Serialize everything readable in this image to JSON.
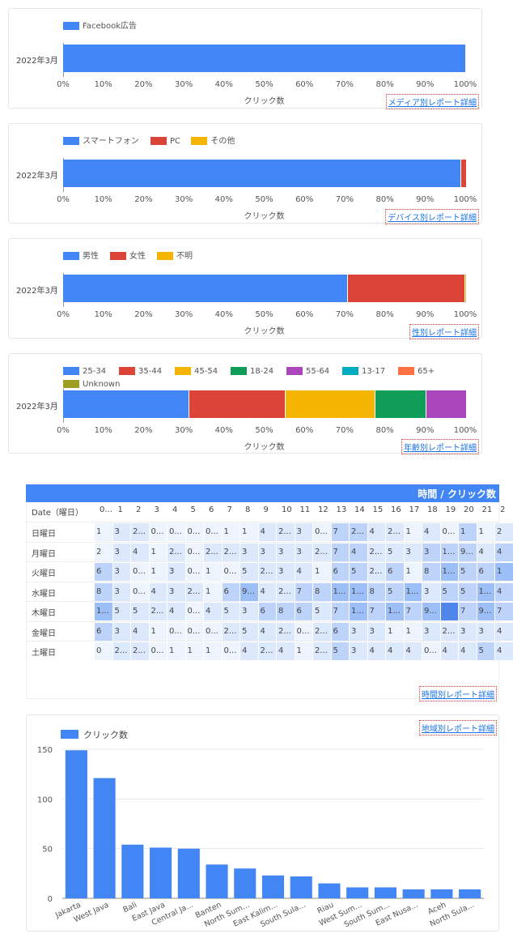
{
  "bar_cards": [
    {
      "row_label": "2022年3月",
      "axis_title": "クリック数",
      "link": "メディア別レポート詳細",
      "legend": [
        {
          "label": "Facebook広告",
          "color": "#4285f4"
        }
      ],
      "segments": [
        100
      ]
    },
    {
      "row_label": "2022年3月",
      "axis_title": "クリック数",
      "link": "デバイス別レポート詳細",
      "legend": [
        {
          "label": "スマートフォン",
          "color": "#4285f4"
        },
        {
          "label": "PC",
          "color": "#db4437"
        },
        {
          "label": "その他",
          "color": "#f4b400"
        }
      ],
      "segments": [
        98.8,
        1.2,
        0
      ]
    },
    {
      "row_label": "2022年3月",
      "axis_title": "クリック数",
      "link": "性別レポート詳細",
      "legend": [
        {
          "label": "男性",
          "color": "#4285f4"
        },
        {
          "label": "女性",
          "color": "#db4437"
        },
        {
          "label": "不明",
          "color": "#f4b400"
        }
      ],
      "segments": [
        70.6,
        29.1,
        0.3
      ]
    },
    {
      "row_label": "2022年3月",
      "axis_title": "クリック数",
      "link": "年齢別レポート詳細",
      "legend": [
        {
          "label": "25-34",
          "color": "#4285f4"
        },
        {
          "label": "35-44",
          "color": "#db4437"
        },
        {
          "label": "45-54",
          "color": "#f4b400"
        },
        {
          "label": "18-24",
          "color": "#0f9d58"
        },
        {
          "label": "55-64",
          "color": "#ab47bc"
        },
        {
          "label": "13-17",
          "color": "#00acc1"
        },
        {
          "label": "65+",
          "color": "#ff7043"
        },
        {
          "label": "Unknown",
          "color": "#9e9d24"
        }
      ],
      "segments": [
        31.2,
        24,
        22.2,
        12.8,
        9.8,
        0,
        0,
        0
      ]
    }
  ],
  "ticks": [
    "0%",
    "10%",
    "20%",
    "30%",
    "40%",
    "50%",
    "60%",
    "70%",
    "80%",
    "90%",
    "100%"
  ],
  "heatmap": {
    "title": "時間 / クリック数",
    "row_header": "Date（曜日）",
    "hours": [
      "0...",
      "1",
      "2",
      "3",
      "4",
      "5",
      "6",
      "7",
      "8",
      "9",
      "10",
      "11",
      "12",
      "13",
      "14",
      "15",
      "16",
      "17",
      "18",
      "19",
      "20",
      "21",
      "2"
    ],
    "link": "時間別レポート詳細",
    "rows": [
      {
        "label": "日曜日",
        "cells": [
          "1",
          "3",
          "2...",
          "0...",
          "0...",
          "0...",
          "0...",
          "1",
          "1",
          "4",
          "2...",
          "3",
          "0...",
          "7",
          "2...",
          "4",
          "2...",
          "1",
          "4",
          "0...",
          "1",
          "1",
          "2"
        ],
        "shade": [
          1,
          2,
          2,
          1,
          1,
          1,
          1,
          1,
          1,
          2,
          2,
          2,
          1,
          3,
          3,
          2,
          2,
          1,
          2,
          1,
          3,
          1,
          2
        ]
      },
      {
        "label": "月曜日",
        "cells": [
          "2",
          "3",
          "4",
          "1",
          "2...",
          "0...",
          "2...",
          "2...",
          "3",
          "3",
          "3",
          "3",
          "2...",
          "7",
          "4",
          "2...",
          "5",
          "3",
          "3",
          "1...",
          "9...",
          "4",
          "4"
        ],
        "shade": [
          1,
          2,
          2,
          1,
          2,
          1,
          2,
          2,
          2,
          2,
          2,
          2,
          2,
          3,
          3,
          2,
          2,
          2,
          3,
          3,
          3,
          2,
          3
        ]
      },
      {
        "label": "火曜日",
        "cells": [
          "6",
          "3",
          "0...",
          "1",
          "3",
          "0...",
          "1",
          "0...",
          "5",
          "2...",
          "3",
          "4",
          "1",
          "6",
          "5",
          "2...",
          "6",
          "1",
          "8",
          "1...",
          "5",
          "6",
          "1"
        ],
        "shade": [
          3,
          2,
          1,
          1,
          2,
          1,
          1,
          1,
          2,
          2,
          2,
          2,
          1,
          3,
          3,
          2,
          3,
          1,
          3,
          4,
          3,
          3,
          4
        ]
      },
      {
        "label": "水曜日",
        "cells": [
          "8",
          "3",
          "0...",
          "4",
          "3",
          "2...",
          "1",
          "6",
          "9...",
          "4",
          "2...",
          "7",
          "8",
          "1...",
          "1...",
          "8",
          "5",
          "1...",
          "3",
          "5",
          "5",
          "1...",
          "4"
        ],
        "shade": [
          3,
          2,
          1,
          2,
          2,
          2,
          1,
          3,
          4,
          2,
          2,
          3,
          3,
          4,
          4,
          3,
          3,
          4,
          2,
          3,
          3,
          4,
          3
        ]
      },
      {
        "label": "木曜日",
        "cells": [
          "1...",
          "5",
          "5",
          "2...",
          "4",
          "0...",
          "4",
          "5",
          "3",
          "6",
          "8",
          "6",
          "5",
          "7",
          "1...",
          "7",
          "1...",
          "7",
          "9...",
          "",
          "7",
          "9...",
          "7"
        ],
        "shade": [
          4,
          2,
          2,
          2,
          2,
          1,
          2,
          2,
          2,
          3,
          3,
          3,
          2,
          3,
          4,
          3,
          4,
          3,
          4,
          5,
          3,
          4,
          3
        ]
      },
      {
        "label": "金曜日",
        "cells": [
          "6",
          "3",
          "4",
          "1",
          "0...",
          "0...",
          "0...",
          "2...",
          "5",
          "4",
          "2...",
          "0...",
          "2...",
          "6",
          "3",
          "3",
          "1",
          "1",
          "3",
          "2...",
          "3",
          "3",
          "4"
        ],
        "shade": [
          3,
          2,
          2,
          1,
          1,
          1,
          1,
          2,
          2,
          2,
          2,
          1,
          2,
          3,
          2,
          2,
          1,
          1,
          2,
          2,
          2,
          2,
          2
        ]
      },
      {
        "label": "土曜日",
        "cells": [
          "0",
          "2...",
          "2...",
          "0...",
          "1",
          "1",
          "1",
          "0...",
          "4",
          "2...",
          "4",
          "1",
          "2...",
          "5",
          "3",
          "4",
          "4",
          "4",
          "0...",
          "4",
          "4",
          "5",
          "4"
        ],
        "shade": [
          1,
          2,
          2,
          1,
          1,
          1,
          1,
          1,
          2,
          2,
          2,
          1,
          2,
          3,
          2,
          2,
          2,
          2,
          1,
          2,
          2,
          3,
          2
        ]
      }
    ]
  },
  "region": {
    "link": "地域別レポート詳細",
    "chart_data": {
      "type": "bar",
      "series_name": "クリック数",
      "categories": [
        "Jakarta",
        "West Java",
        "Bali",
        "East Java",
        "Central Ja...",
        "Banten",
        "North Sum...",
        "East Kalim...",
        "South Sula...",
        "Riau",
        "West Sum...",
        "South Sum...",
        "East Nusa...",
        "Aceh",
        "North Sula..."
      ],
      "values": [
        149,
        121,
        54,
        51,
        50,
        34,
        30,
        23,
        22,
        15,
        11,
        11,
        9,
        9,
        9
      ],
      "ylim": [
        0,
        150
      ],
      "yticks": [
        "0",
        "50",
        "100",
        "150"
      ],
      "color": "#4285f4"
    }
  }
}
